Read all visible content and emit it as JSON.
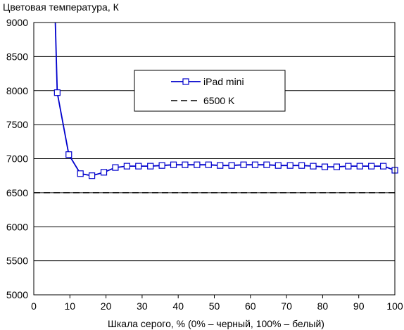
{
  "chart_data": {
    "type": "line",
    "ylabel": "Цветовая температура, К",
    "xlabel": "Шкала серого, % (0% – черный, 100% – белый)",
    "xlim": [
      0,
      100
    ],
    "ylim": [
      5000,
      9000
    ],
    "x_ticks": [
      "0",
      "10",
      "20",
      "30",
      "40",
      "50",
      "60",
      "70",
      "80",
      "90",
      "100"
    ],
    "y_ticks": [
      "5000",
      "5500",
      "6000",
      "6500",
      "7000",
      "7500",
      "8000",
      "8500",
      "9000"
    ],
    "grid": "horizontal",
    "legend_position": "center-right",
    "series": [
      {
        "name": "iPad mini",
        "color": "#0000cc",
        "marker": "square",
        "x": [
          6.5,
          9.7,
          12.9,
          16.1,
          19.4,
          22.6,
          25.8,
          29.0,
          32.3,
          35.5,
          38.7,
          41.9,
          45.2,
          48.4,
          51.6,
          54.8,
          58.1,
          61.3,
          64.5,
          67.7,
          71.0,
          74.2,
          77.4,
          80.6,
          83.9,
          87.1,
          90.3,
          93.5,
          96.8,
          100
        ],
        "y": [
          7970,
          7060,
          6780,
          6750,
          6800,
          6870,
          6890,
          6890,
          6890,
          6900,
          6910,
          6910,
          6910,
          6910,
          6900,
          6900,
          6910,
          6910,
          6910,
          6900,
          6900,
          6900,
          6890,
          6880,
          6880,
          6890,
          6890,
          6890,
          6890,
          6830
        ]
      },
      {
        "name": "6500 K",
        "color": "#000000",
        "style": "dashed",
        "x": [
          0,
          100
        ],
        "y": [
          6500,
          6500
        ]
      }
    ],
    "offscale_start": {
      "x": 5.6,
      "y": 9700
    }
  }
}
